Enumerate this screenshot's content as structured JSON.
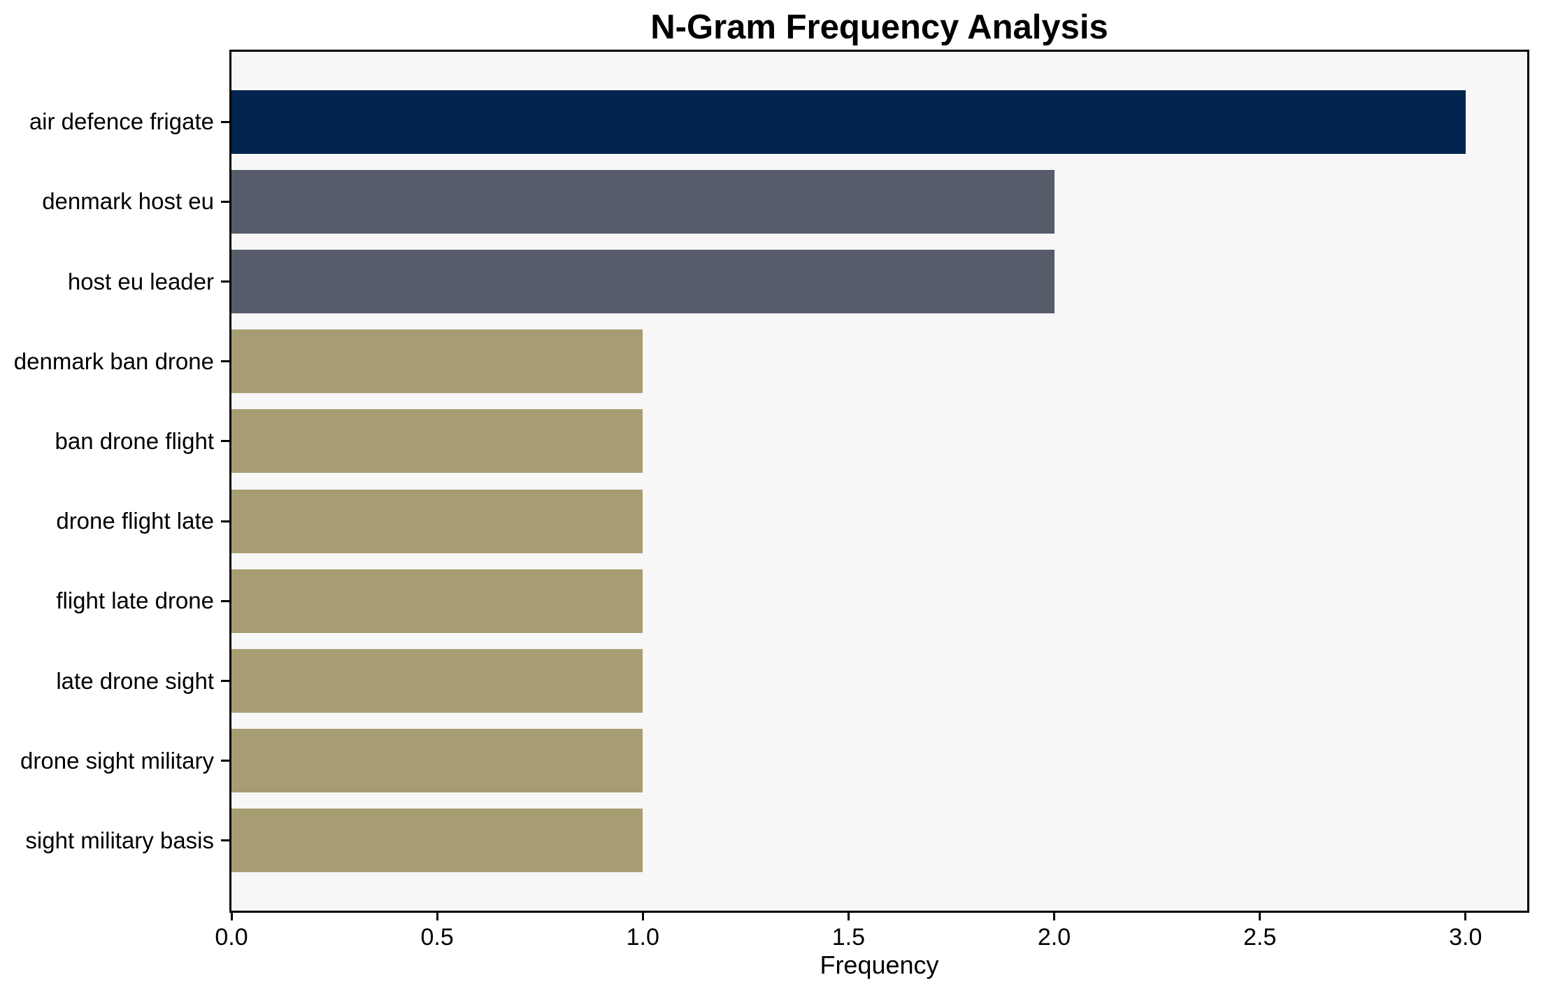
{
  "figure": {
    "background": "#ffffff"
  },
  "chart_data": {
    "type": "bar",
    "orientation": "horizontal",
    "title": "N-Gram Frequency Analysis",
    "xlabel": "Frequency",
    "ylabel": "",
    "categories": [
      "air defence frigate",
      "denmark host eu",
      "host eu leader",
      "denmark ban drone",
      "ban drone flight",
      "drone flight late",
      "flight late drone",
      "late drone sight",
      "drone sight military",
      "sight military basis"
    ],
    "values": [
      3,
      2,
      2,
      1,
      1,
      1,
      1,
      1,
      1,
      1
    ],
    "bar_colors": [
      "#02244e",
      "#565c6a",
      "#565c6a",
      "#a69d72",
      "#a69d72",
      "#a69d72",
      "#a69d72",
      "#a69d72",
      "#a69d72",
      "#a69d72"
    ],
    "x_ticks": [
      {
        "label": "0.0",
        "value": 0
      },
      {
        "label": "0.5",
        "value": 0.5
      },
      {
        "label": "1.0",
        "value": 1
      },
      {
        "label": "1.5",
        "value": 1.5
      },
      {
        "label": "2.0",
        "value": 2
      },
      {
        "label": "2.5",
        "value": 2.5
      },
      {
        "label": "3.0",
        "value": 3
      }
    ],
    "xlim": [
      0,
      3.15
    ],
    "grid": false,
    "legend": null,
    "plot_background": "#f7f7f7",
    "spine_color": "#000000",
    "text_color": "#000000"
  }
}
